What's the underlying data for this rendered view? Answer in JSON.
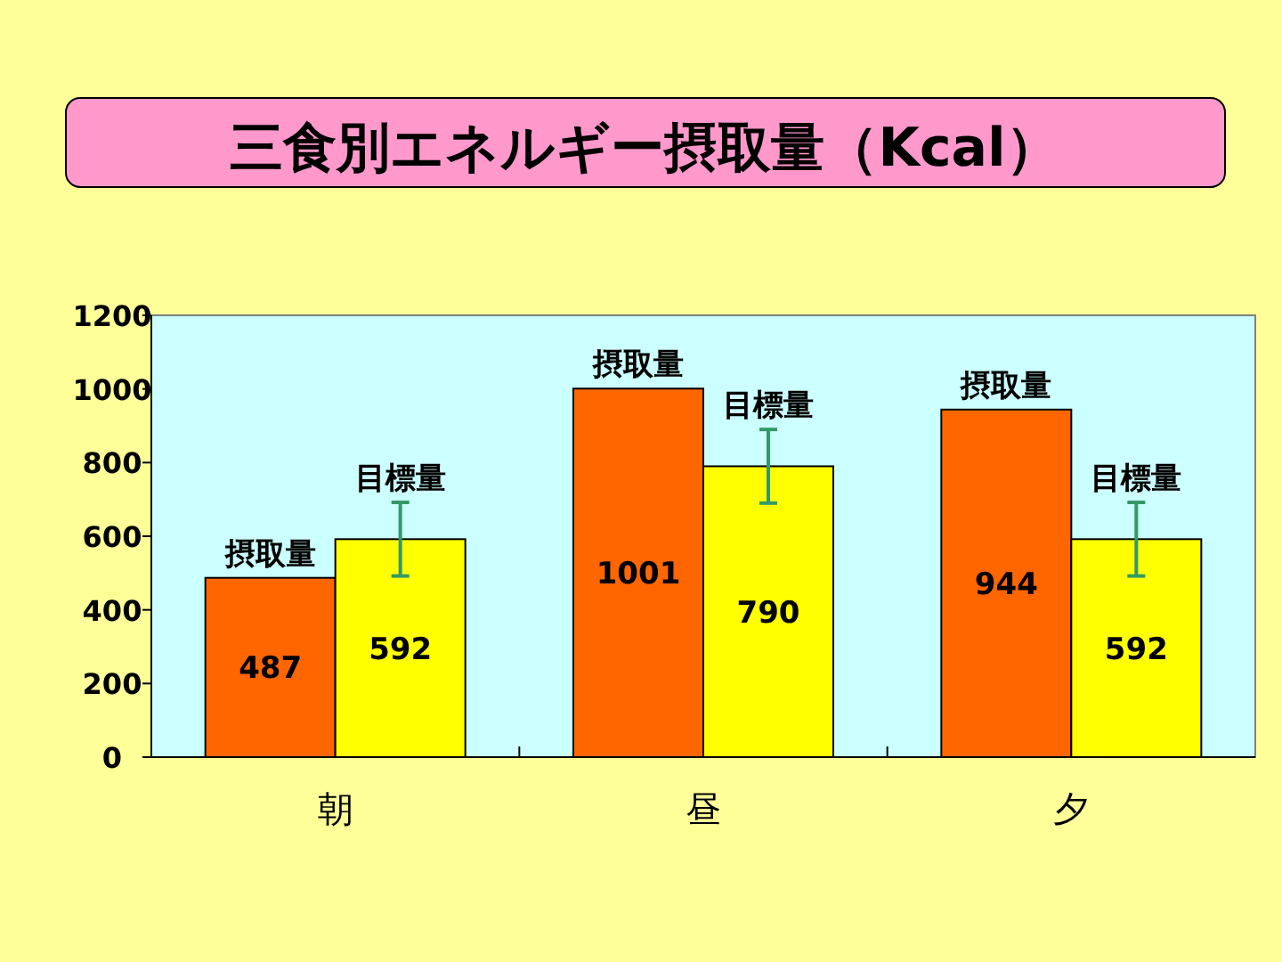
{
  "chart_data": {
    "type": "bar",
    "title": "三食別エネルギー摂取量（Kcal）",
    "categories": [
      "朝",
      "昼",
      "夕"
    ],
    "series": [
      {
        "name": "摂取量",
        "color": "#ff6600",
        "values": [
          487,
          1001,
          944
        ]
      },
      {
        "name": "目標量",
        "color": "#ffff00",
        "values": [
          592,
          790,
          592
        ],
        "errors": [
          100,
          100,
          100
        ]
      }
    ],
    "ylim": [
      0,
      1200
    ],
    "yticks": [
      0,
      200,
      400,
      600,
      800,
      1000,
      1200
    ],
    "grid": false,
    "legend": false,
    "data_labels": true
  }
}
